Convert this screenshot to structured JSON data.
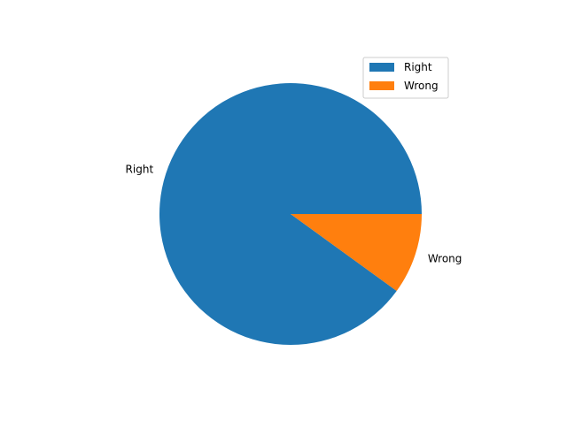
{
  "chart_data": {
    "type": "pie",
    "title": "",
    "labels": [
      "Right",
      "Wrong"
    ],
    "values": [
      90,
      10
    ],
    "colors": [
      "#1f77b4",
      "#ff7f0e"
    ],
    "start_angle_deg": 0,
    "direction": "counterclockwise",
    "legend": {
      "placement": "top-right",
      "entries": [
        "Right",
        "Wrong"
      ]
    }
  }
}
